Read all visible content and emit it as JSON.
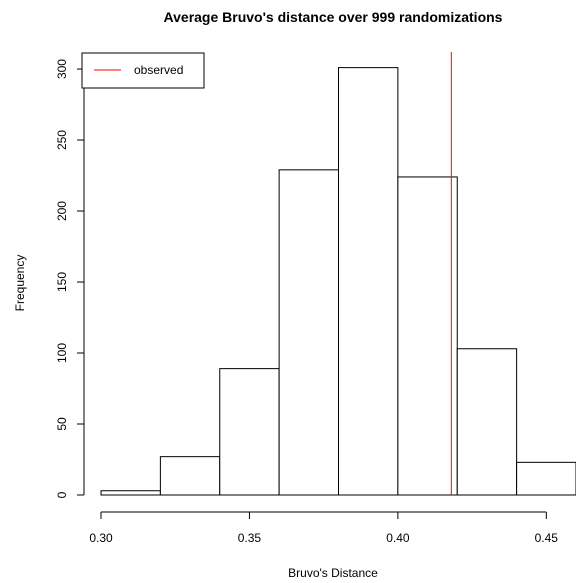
{
  "chart_data": {
    "type": "histogram",
    "title": "Average Bruvo's distance over 999 randomizations",
    "xlabel": "Bruvo's Distance",
    "ylabel": "Frequency",
    "xlim": [
      0.3,
      0.46
    ],
    "ylim": [
      0,
      312
    ],
    "x_ticks": [
      0.3,
      0.35,
      0.4,
      0.45
    ],
    "x_tick_labels": [
      "0.30",
      "0.35",
      "0.40",
      "0.45"
    ],
    "y_ticks": [
      0,
      50,
      100,
      150,
      200,
      250,
      300
    ],
    "y_tick_labels": [
      "0",
      "50",
      "100",
      "150",
      "200",
      "250",
      "300"
    ],
    "bins": [
      {
        "start": 0.3,
        "end": 0.32,
        "count": 3
      },
      {
        "start": 0.32,
        "end": 0.34,
        "count": 27
      },
      {
        "start": 0.34,
        "end": 0.36,
        "count": 89
      },
      {
        "start": 0.36,
        "end": 0.38,
        "count": 229
      },
      {
        "start": 0.38,
        "end": 0.4,
        "count": 301
      },
      {
        "start": 0.4,
        "end": 0.42,
        "count": 224
      },
      {
        "start": 0.42,
        "end": 0.44,
        "count": 103
      },
      {
        "start": 0.44,
        "end": 0.46,
        "count": 23
      }
    ],
    "observed": {
      "label": "observed",
      "value": 0.418,
      "color": "#ff0000"
    },
    "legend_position": "top-left",
    "grid": false,
    "bar_fill": "#ffffff",
    "bar_stroke": "#000000"
  }
}
